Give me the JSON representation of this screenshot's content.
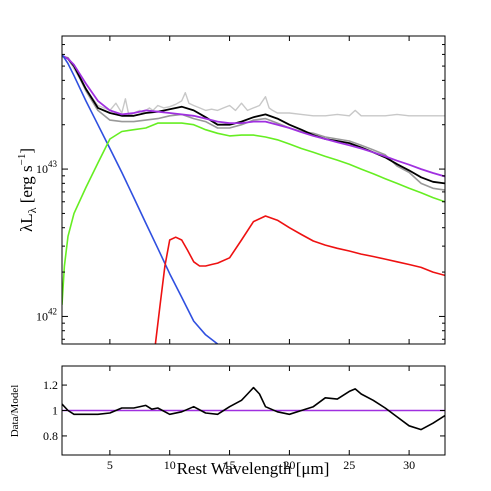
{
  "chart_data": [
    {
      "type": "line",
      "scale": "log-y",
      "xlim": [
        1,
        33
      ],
      "ylim": [
        6.5e+41,
        8e+43
      ],
      "ylabel_main": "λL",
      "ylabel_sub": "λ",
      "ylabel_unit": "[erg s",
      "ylabel_exp": "−1",
      "ylabel_close": "]",
      "yticks": [
        {
          "value": 1e+42,
          "base": "10",
          "exp": "42"
        },
        {
          "value": 1e+43,
          "base": "10",
          "exp": "43"
        }
      ],
      "series": [
        {
          "color": "#c8c8c8",
          "width": 1.4,
          "x": [
            1,
            1.5,
            2,
            3,
            4,
            5,
            5.5,
            6,
            6.3,
            6.6,
            7,
            7.5,
            7.7,
            8,
            8.3,
            8.6,
            9,
            9.5,
            10,
            10.5,
            11,
            11.3,
            11.6,
            12,
            12.5,
            13,
            13.5,
            14,
            14.5,
            15,
            15.5,
            16,
            16.5,
            17,
            17.5,
            18,
            18.3,
            18.6,
            19,
            20,
            21,
            22,
            23,
            24,
            25,
            25.5,
            26,
            27,
            28,
            29,
            30,
            31,
            32,
            33
          ],
          "y": [
            5.8e+43,
            5.6e+43,
            4.8e+43,
            3.5e+43,
            2.7e+43,
            2.5e+43,
            2.8e+43,
            2.4e+43,
            3e+43,
            2.3e+43,
            2.4e+43,
            2.5e+43,
            2.4e+43,
            2.5e+43,
            2.6e+43,
            2.5e+43,
            2.7e+43,
            2.6e+43,
            2.65e+43,
            2.75e+43,
            2.9e+43,
            3.3e+43,
            2.8e+43,
            2.7e+43,
            2.6e+43,
            2.5e+43,
            2.55e+43,
            2.5e+43,
            2.6e+43,
            2.7e+43,
            2.5e+43,
            2.8e+43,
            2.5e+43,
            2.6e+43,
            2.7e+43,
            3.1e+43,
            2.6e+43,
            2.5e+43,
            2.4e+43,
            2.4e+43,
            2.35e+43,
            2.3e+43,
            2.3e+43,
            2.35e+43,
            2.3e+43,
            2.5e+43,
            2.3e+43,
            2.3e+43,
            2.3e+43,
            2.35e+43,
            2.3e+43,
            2.3e+43,
            2.3e+43,
            2.3e+43
          ]
        },
        {
          "color": "#999999",
          "width": 1.6,
          "x": [
            1,
            1.5,
            2,
            3,
            4,
            5,
            6,
            7,
            8,
            9,
            10,
            11,
            12,
            13,
            14,
            15,
            16,
            17,
            18,
            19,
            20,
            21,
            22,
            23,
            24,
            25,
            26,
            27,
            28,
            29,
            30,
            31,
            32,
            33
          ],
          "y": [
            5.8e+43,
            5.7e+43,
            5e+43,
            3.4e+43,
            2.5e+43,
            2.15e+43,
            2.1e+43,
            2.1e+43,
            2.15e+43,
            2.2e+43,
            2.3e+43,
            2.35e+43,
            2.2e+43,
            2.1e+43,
            1.9e+43,
            1.9e+43,
            2e+43,
            2.15e+43,
            2.2e+43,
            2.05e+43,
            1.9e+43,
            1.8e+43,
            1.75e+43,
            1.65e+43,
            1.6e+43,
            1.55e+43,
            1.45e+43,
            1.35e+43,
            1.25e+43,
            1.05e+43,
            9.5e+42,
            8e+42,
            7.4e+42,
            7.2e+42
          ]
        },
        {
          "color": "#000000",
          "width": 1.8,
          "x": [
            1,
            1.5,
            2,
            3,
            4,
            5,
            6,
            7,
            8,
            9,
            10,
            11,
            12,
            13,
            14,
            15,
            16,
            17,
            18,
            19,
            20,
            21,
            22,
            23,
            24,
            25,
            26,
            27,
            28,
            29,
            30,
            31,
            32,
            33
          ],
          "y": [
            5.9e+43,
            5.6e+43,
            5e+43,
            3.5e+43,
            2.6e+43,
            2.4e+43,
            2.3e+43,
            2.3e+43,
            2.4e+43,
            2.45e+43,
            2.55e+43,
            2.65e+43,
            2.5e+43,
            2.25e+43,
            2e+43,
            2e+43,
            2.1e+43,
            2.25e+43,
            2.35e+43,
            2.2e+43,
            2e+43,
            1.85e+43,
            1.7e+43,
            1.6e+43,
            1.55e+43,
            1.5e+43,
            1.4e+43,
            1.3e+43,
            1.2e+43,
            1.08e+43,
            9.8e+42,
            8.8e+42,
            8.2e+42,
            8e+42
          ]
        },
        {
          "color": "#a030e0",
          "width": 1.8,
          "x": [
            1,
            1.5,
            2,
            3,
            4,
            5,
            6,
            7,
            8,
            9,
            10,
            11,
            12,
            13,
            14,
            15,
            16,
            17,
            18,
            19,
            20,
            21,
            22,
            23,
            24,
            25,
            26,
            27,
            28,
            29,
            30,
            31,
            32,
            33
          ],
          "y": [
            5.9e+43,
            5.6e+43,
            5.1e+43,
            3.8e+43,
            2.9e+43,
            2.5e+43,
            2.35e+43,
            2.4e+43,
            2.5e+43,
            2.45e+43,
            2.4e+43,
            2.35e+43,
            2.3e+43,
            2.2e+43,
            2.1e+43,
            2.05e+43,
            2.05e+43,
            2.1e+43,
            2.1e+43,
            2e+43,
            1.9e+43,
            1.78e+43,
            1.68e+43,
            1.6e+43,
            1.52e+43,
            1.45e+43,
            1.38e+43,
            1.3e+43,
            1.22e+43,
            1.14e+43,
            1.07e+43,
            1e+43,
            9.4e+42,
            8.9e+42
          ]
        },
        {
          "color": "#3050e0",
          "width": 1.6,
          "x": [
            1,
            1.5,
            2,
            3,
            4,
            5,
            6,
            7,
            8,
            9,
            10,
            11,
            12,
            13,
            14
          ],
          "y": [
            6e+43,
            5.2e+43,
            4.3e+43,
            2.9e+43,
            2e+43,
            1.38e+43,
            9.5e+42,
            6.4e+42,
            4.3e+42,
            2.9e+42,
            1.95e+42,
            1.35e+42,
            9.3e+41,
            7.5e+41,
            6.5e+41
          ]
        },
        {
          "color": "#66ee22",
          "width": 1.6,
          "x": [
            1,
            1.2,
            1.5,
            2,
            3,
            4,
            5,
            6,
            7,
            8,
            9,
            10,
            11,
            12,
            13,
            14,
            15,
            16,
            17,
            18,
            19,
            20,
            21,
            22,
            23,
            24,
            25,
            26,
            27,
            28,
            29,
            30,
            31,
            32,
            33
          ],
          "y": [
            1.2e+42,
            2.2e+42,
            3.5e+42,
            5e+42,
            7.5e+42,
            1.1e+43,
            1.6e+43,
            1.8e+43,
            1.85e+43,
            1.9e+43,
            2.05e+43,
            2.05e+43,
            2.05e+43,
            2e+43,
            1.85e+43,
            1.75e+43,
            1.68e+43,
            1.7e+43,
            1.7e+43,
            1.65e+43,
            1.58e+43,
            1.48e+43,
            1.38e+43,
            1.3e+43,
            1.22e+43,
            1.15e+43,
            1.08e+43,
            1e+43,
            9.3e+42,
            8.6e+42,
            8e+42,
            7.4e+42,
            6.9e+42,
            6.4e+42,
            6e+42
          ]
        },
        {
          "color": "#ee1111",
          "width": 1.6,
          "x": [
            8.8,
            9.2,
            9.6,
            10,
            10.5,
            11,
            11.5,
            12,
            12.5,
            13,
            13.5,
            14,
            15,
            16,
            17,
            18,
            19,
            20,
            21,
            22,
            23,
            24,
            25,
            26,
            27,
            28,
            29,
            30,
            31,
            32,
            33
          ],
          "y": [
            6.5e+41,
            1.2e+42,
            2.2e+42,
            3.3e+42,
            3.45e+42,
            3.3e+42,
            2.8e+42,
            2.35e+42,
            2.2e+42,
            2.2e+42,
            2.25e+42,
            2.3e+42,
            2.5e+42,
            3.3e+42,
            4.4e+42,
            4.8e+42,
            4.5e+42,
            4e+42,
            3.6e+42,
            3.25e+42,
            3.05e+42,
            2.9e+42,
            2.78e+42,
            2.65e+42,
            2.55e+42,
            2.45e+42,
            2.35e+42,
            2.25e+42,
            2.15e+42,
            2e+42,
            1.9e+42
          ]
        }
      ]
    },
    {
      "type": "line",
      "xlim": [
        1,
        33
      ],
      "ylim": [
        0.65,
        1.35
      ],
      "ylabel": "Data/Model",
      "xlabel": "Rest Wavelength [μm]",
      "xticks": [
        5,
        10,
        15,
        20,
        25,
        30
      ],
      "yticks": [
        {
          "value": 1.2,
          "label": "1.2"
        },
        {
          "value": 1.0,
          "label": "1"
        },
        {
          "value": 0.8,
          "label": "0.8"
        }
      ],
      "reference_line": {
        "value": 1.0,
        "color": "#a030e0"
      },
      "series": [
        {
          "color": "#000000",
          "width": 1.6,
          "x": [
            1,
            1.5,
            2,
            3,
            4,
            5,
            6,
            7,
            8,
            8.5,
            9,
            10,
            11,
            12,
            13,
            14,
            15,
            16,
            16.5,
            17,
            17.5,
            18,
            19,
            20,
            21,
            22,
            23,
            24,
            25,
            25.5,
            26,
            27,
            28,
            29,
            30,
            31,
            32,
            33
          ],
          "y": [
            1.05,
            1.0,
            0.97,
            0.97,
            0.97,
            0.98,
            1.02,
            1.02,
            1.04,
            1.01,
            1.02,
            0.97,
            0.99,
            1.03,
            0.98,
            0.97,
            1.03,
            1.08,
            1.13,
            1.18,
            1.13,
            1.03,
            0.99,
            0.97,
            1.0,
            1.03,
            1.1,
            1.09,
            1.15,
            1.17,
            1.13,
            1.08,
            1.02,
            0.95,
            0.88,
            0.85,
            0.9,
            0.96
          ]
        }
      ]
    }
  ]
}
